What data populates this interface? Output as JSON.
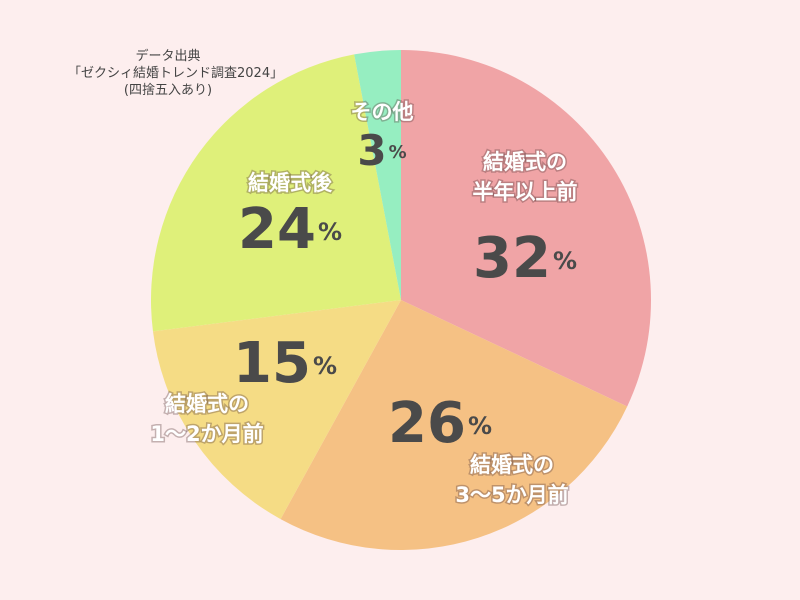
{
  "source": {
    "line1": "データ出典",
    "line2": "「ゼクシィ結婚トレンド調査2024」",
    "line3": "(四捨五入あり)"
  },
  "chart_data": {
    "type": "pie",
    "start": "12 o'clock",
    "direction": "clockwise",
    "slices": [
      {
        "label": [
          "結婚式の",
          "半年以上前"
        ],
        "value": 32,
        "color": "#f0a4a6"
      },
      {
        "label": [
          "結婚式の",
          "3～5か月前"
        ],
        "value": 26,
        "color": "#f5c184"
      },
      {
        "label": [
          "結婚式の",
          "1～2か月前"
        ],
        "value": 15,
        "color": "#f5dc85"
      },
      {
        "label": [
          "結婚式後"
        ],
        "value": 24,
        "color": "#dff07a"
      },
      {
        "label": [
          "その他"
        ],
        "value": 3,
        "color": "#96eec1"
      }
    ],
    "unit": "%"
  }
}
